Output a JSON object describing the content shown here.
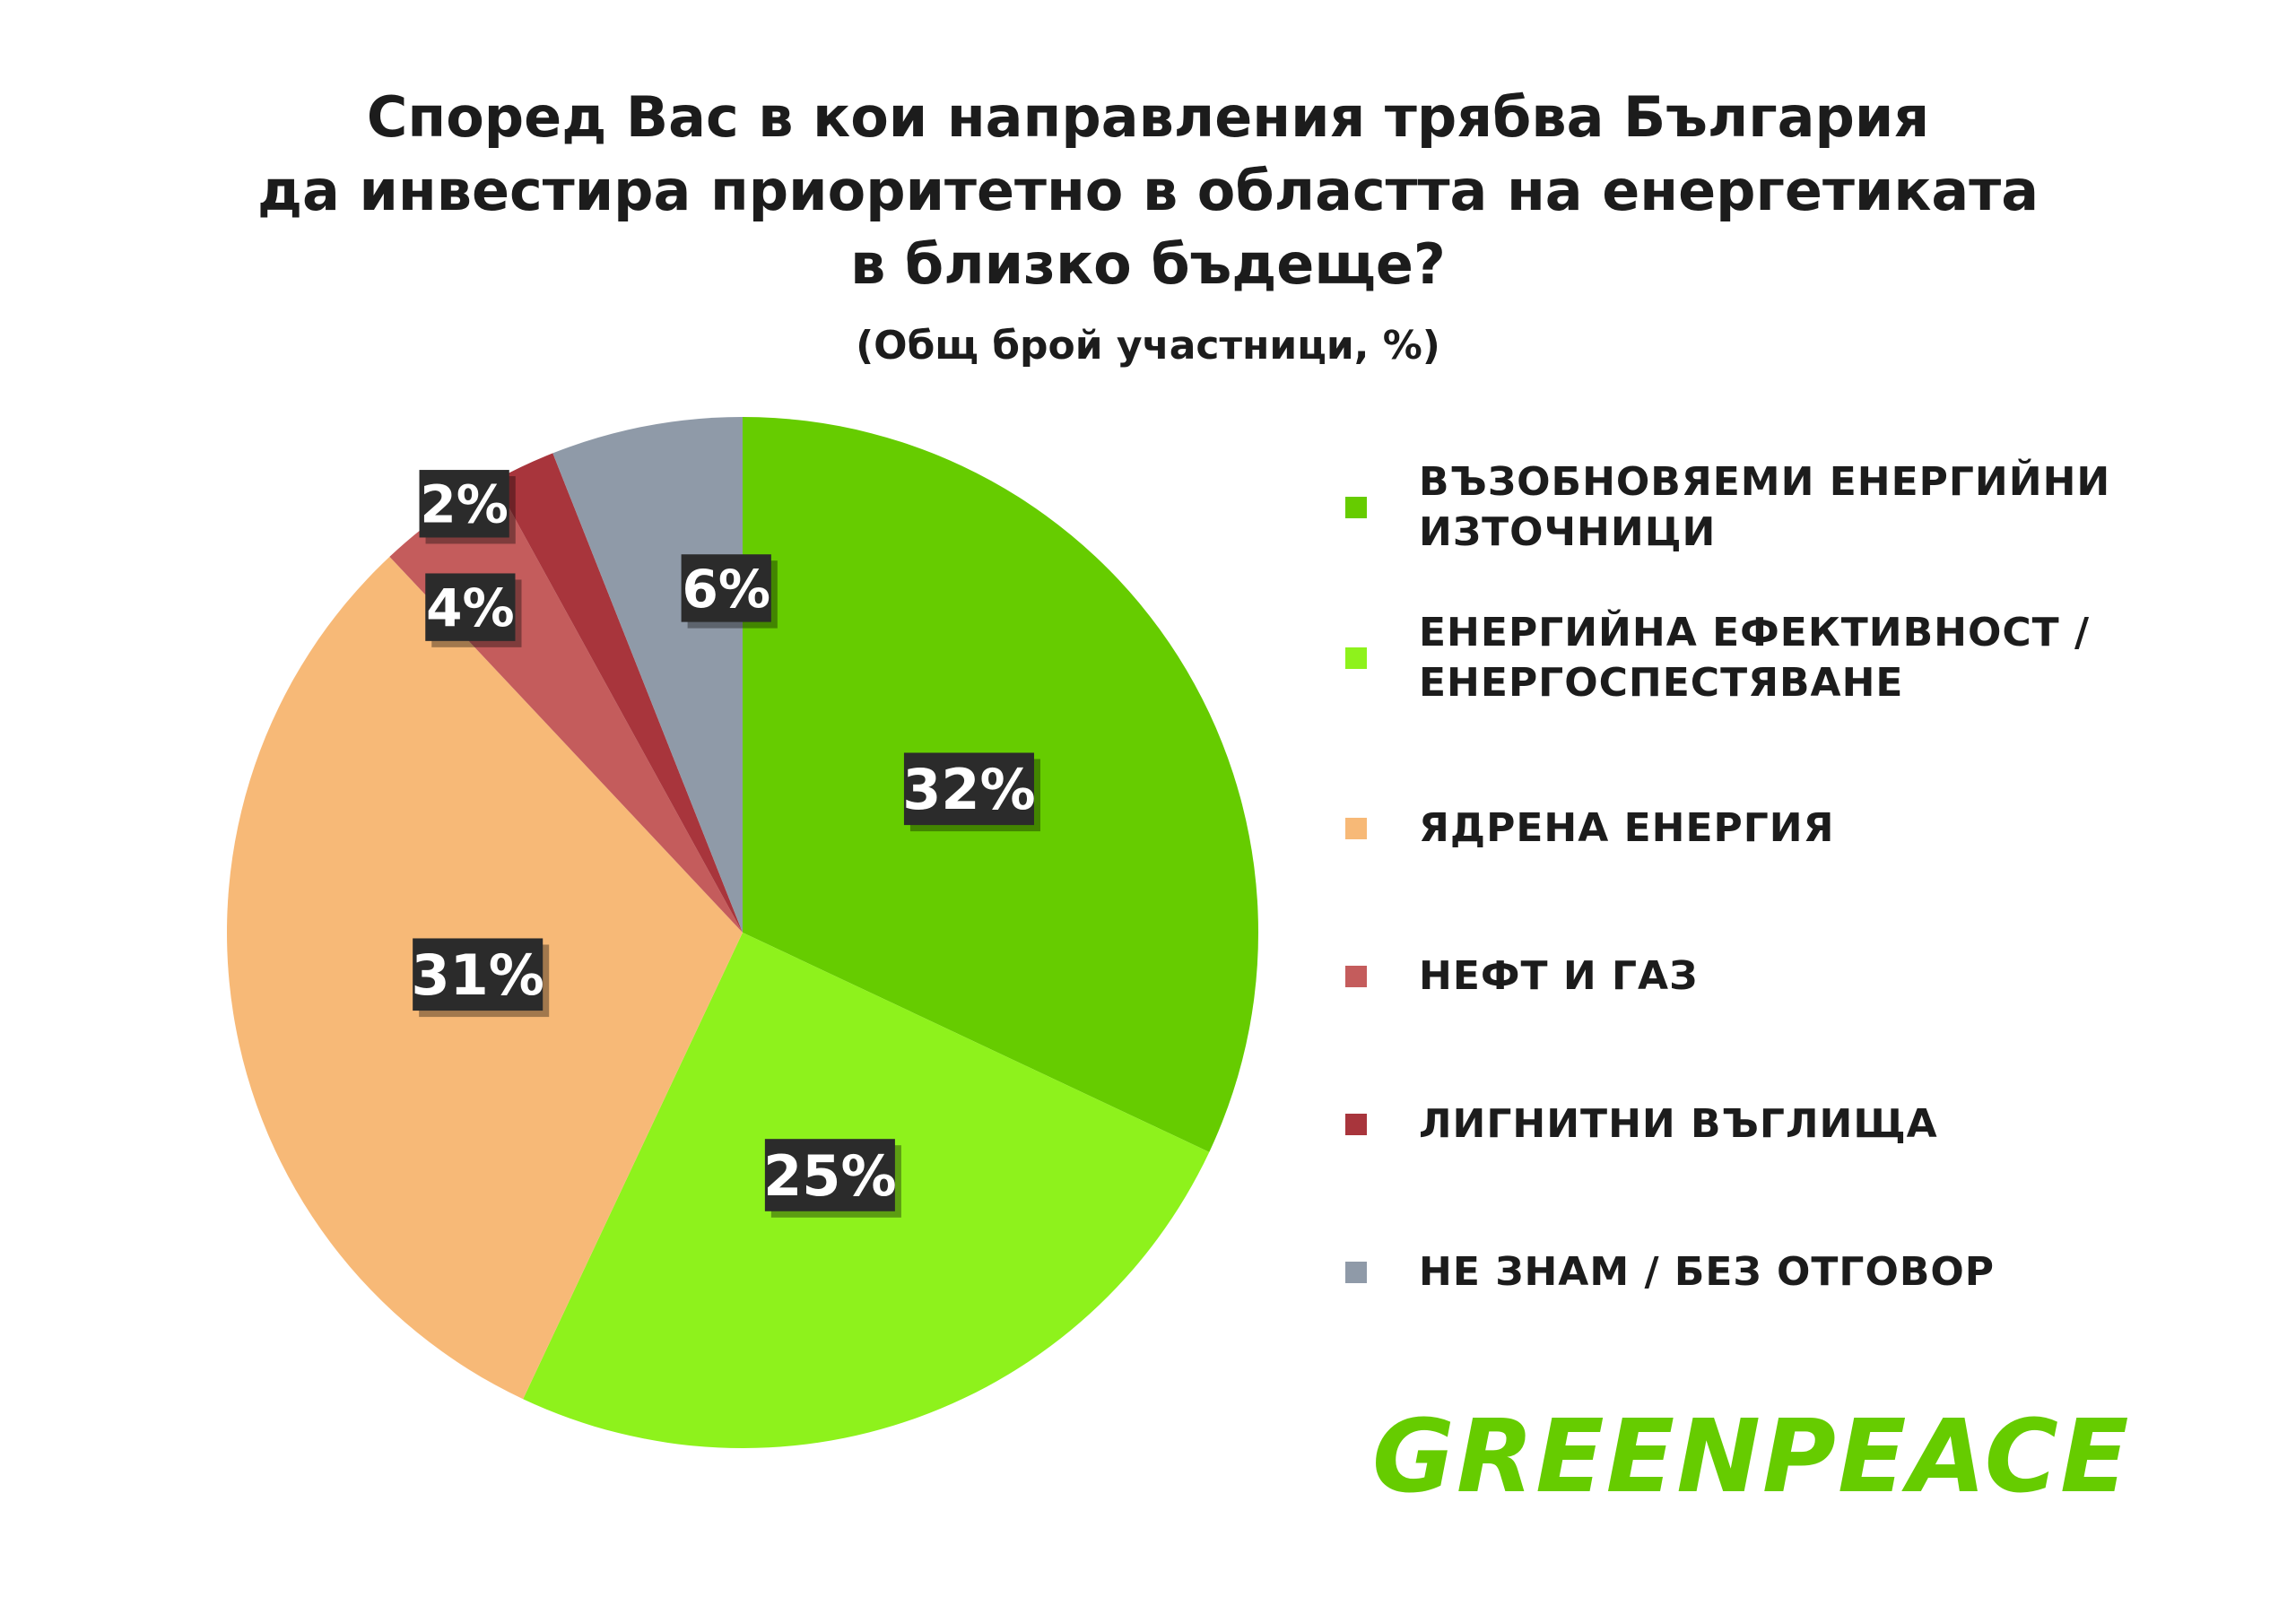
{
  "chart_data": {
    "type": "pie",
    "title_lines": [
      "Според Вас в кои направления трябва България",
      "да инвестира приоритетно в областта на енергетиката",
      "в близко бъдеще?"
    ],
    "subtitle": "(Общ брой участници, %)",
    "categories": [
      "ВЪЗОБНОВЯЕМИ ЕНЕРГИЙНИ ИЗТОЧНИЦИ",
      "ЕНЕРГИЙНА ЕФЕКТИВНОСТ / ЕНЕРГОСПЕСТЯВАНЕ",
      "ЯДРЕНА ЕНЕРГИЯ",
      "НЕФТ И ГАЗ",
      "ЛИГНИТНИ ВЪГЛИЩА",
      "НЕ ЗНАМ / БЕЗ ОТГОВОР"
    ],
    "values": [
      32,
      25,
      31,
      4,
      2,
      6
    ],
    "value_labels": [
      "32%",
      "25%",
      "31%",
      "4%",
      "2%",
      "6%"
    ],
    "colors": [
      "#66cc00",
      "#8ef21c",
      "#f7b977",
      "#c45c5c",
      "#a8353c",
      "#8f9aa8"
    ],
    "legend_position": "right"
  },
  "brand": {
    "logo_text": "GREENPEACE",
    "color": "#66cc00"
  }
}
